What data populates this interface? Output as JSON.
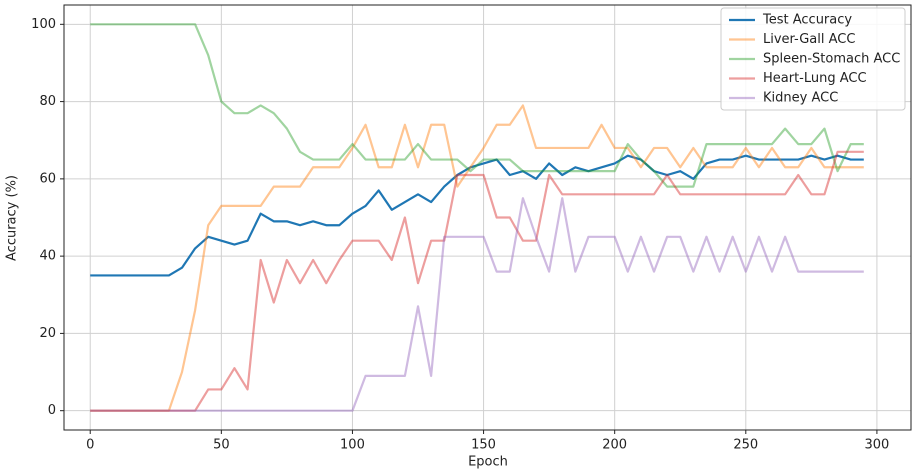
{
  "chart_data": {
    "type": "line",
    "xlabel": "Epoch",
    "ylabel": "Accuracy (%)",
    "x": [
      0,
      5,
      10,
      15,
      20,
      25,
      30,
      35,
      40,
      45,
      50,
      55,
      60,
      65,
      70,
      75,
      80,
      85,
      90,
      95,
      100,
      105,
      110,
      115,
      120,
      125,
      130,
      135,
      140,
      145,
      150,
      155,
      160,
      165,
      170,
      175,
      180,
      185,
      190,
      195,
      200,
      205,
      210,
      215,
      220,
      225,
      230,
      235,
      240,
      245,
      250,
      255,
      260,
      265,
      270,
      275,
      280,
      285,
      290,
      295
    ],
    "series": [
      {
        "name": "Test Accuracy",
        "color": "#1f77b4",
        "opacity": 1,
        "values": [
          35,
          35,
          35,
          35,
          35,
          35,
          35,
          37,
          42,
          45,
          44,
          43,
          44,
          51,
          49,
          49,
          48,
          49,
          48,
          48,
          51,
          53,
          57,
          52,
          54,
          56,
          54,
          58,
          61,
          63,
          64,
          65,
          61,
          62,
          60,
          64,
          61,
          63,
          62,
          63,
          64,
          66,
          65,
          62,
          61,
          62,
          60,
          64,
          65,
          65,
          66,
          65,
          65,
          65,
          65,
          66,
          65,
          66,
          65,
          65
        ]
      },
      {
        "name": "Liver-Gall ACC",
        "color": "#ff7f0e",
        "opacity": 0.45,
        "values": [
          0,
          0,
          0,
          0,
          0,
          0,
          0,
          10,
          26,
          48,
          53,
          53,
          53,
          53,
          58,
          58,
          58,
          63,
          63,
          63,
          68,
          74,
          63,
          63,
          74,
          63,
          74,
          74,
          58,
          63,
          68,
          74,
          74,
          79,
          68,
          68,
          68,
          68,
          68,
          74,
          68,
          68,
          63,
          68,
          68,
          63,
          68,
          63,
          63,
          63,
          68,
          63,
          68,
          63,
          63,
          68,
          63,
          63,
          63,
          63
        ]
      },
      {
        "name": "Spleen-Stomach ACC",
        "color": "#2ca02c",
        "opacity": 0.45,
        "values": [
          100,
          100,
          100,
          100,
          100,
          100,
          100,
          100,
          100,
          92,
          80,
          77,
          77,
          79,
          77,
          73,
          67,
          65,
          65,
          65,
          69,
          65,
          65,
          65,
          65,
          69,
          65,
          65,
          65,
          62,
          65,
          65,
          65,
          62,
          62,
          62,
          62,
          62,
          62,
          62,
          62,
          69,
          65,
          62,
          58,
          58,
          58,
          69,
          69,
          69,
          69,
          69,
          69,
          73,
          69,
          69,
          73,
          62,
          69,
          69
        ]
      },
      {
        "name": "Heart-Lung ACC",
        "color": "#d62728",
        "opacity": 0.45,
        "values": [
          0,
          0,
          0,
          0,
          0,
          0,
          0,
          0,
          0,
          5.5,
          5.5,
          11,
          5.5,
          39,
          28,
          39,
          33,
          39,
          33,
          39,
          44,
          44,
          44,
          39,
          50,
          33,
          44,
          44,
          61,
          61,
          61,
          50,
          50,
          44,
          44,
          61,
          56,
          56,
          56,
          56,
          56,
          56,
          56,
          56,
          61,
          56,
          56,
          56,
          56,
          56,
          56,
          56,
          56,
          56,
          61,
          56,
          56,
          67,
          67,
          67
        ]
      },
      {
        "name": "Kidney ACC",
        "color": "#9467bd",
        "opacity": 0.45,
        "values": [
          0,
          0,
          0,
          0,
          0,
          0,
          0,
          0,
          0,
          0,
          0,
          0,
          0,
          0,
          0,
          0,
          0,
          0,
          0,
          0,
          0,
          9,
          9,
          9,
          9,
          27,
          9,
          45,
          45,
          45,
          45,
          36,
          36,
          55,
          45,
          36,
          55,
          36,
          45,
          45,
          45,
          36,
          45,
          36,
          45,
          45,
          36,
          45,
          36,
          45,
          36,
          45,
          36,
          45,
          36,
          36,
          36,
          36,
          36,
          36
        ]
      }
    ],
    "xlim": [
      -10,
      313
    ],
    "ylim": [
      -5,
      105
    ],
    "xticks": [
      0,
      50,
      100,
      150,
      200,
      250,
      300
    ],
    "yticks": [
      0,
      20,
      40,
      60,
      80,
      100
    ],
    "grid": true,
    "legend": "upper right"
  }
}
